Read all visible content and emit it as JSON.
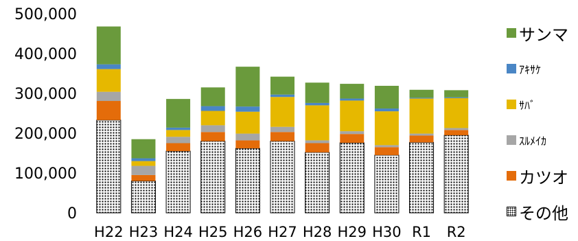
{
  "chart_data": {
    "type": "bar",
    "stacked": true,
    "categories": [
      "H22",
      "H23",
      "H24",
      "H25",
      "H26",
      "H27",
      "H28",
      "H29",
      "H30",
      "R1",
      "R2"
    ],
    "yticks": [
      "0",
      "100,000",
      "200,000",
      "300,000",
      "400,000",
      "500,000"
    ],
    "ylim": [
      0,
      500000
    ],
    "grid": false,
    "legend_position": "right",
    "series": [
      {
        "name": "その他",
        "color": "#ffffff",
        "pattern": "dots",
        "values": [
          233000,
          80000,
          155000,
          180000,
          162000,
          180000,
          152000,
          176000,
          145000,
          177000,
          195000
        ]
      },
      {
        "name": "カツオ",
        "color": "#e46c0a",
        "values": [
          48000,
          15000,
          20000,
          23000,
          20000,
          23000,
          23000,
          22000,
          20000,
          17000,
          13000
        ]
      },
      {
        "name": "ｽﾙﾒｲｶ",
        "color": "#a6a6a6",
        "values": [
          23000,
          23000,
          16000,
          17000,
          17000,
          13000,
          7000,
          7000,
          5000,
          5000,
          5000
        ]
      },
      {
        "name": "ｻﾊﾞ",
        "color": "#e6b800",
        "values": [
          57000,
          12000,
          17000,
          36000,
          55000,
          75000,
          88000,
          77000,
          85000,
          88000,
          75000
        ]
      },
      {
        "name": "ｱｷｻｹ",
        "color": "#4a86c5",
        "values": [
          12000,
          7000,
          6000,
          12000,
          13000,
          6000,
          6000,
          5000,
          7000,
          2000,
          2000
        ]
      },
      {
        "name": "サンマ",
        "color": "#6a9a3c",
        "values": [
          95000,
          48000,
          72000,
          47000,
          100000,
          45000,
          51000,
          37000,
          57000,
          20000,
          18000
        ]
      }
    ]
  }
}
